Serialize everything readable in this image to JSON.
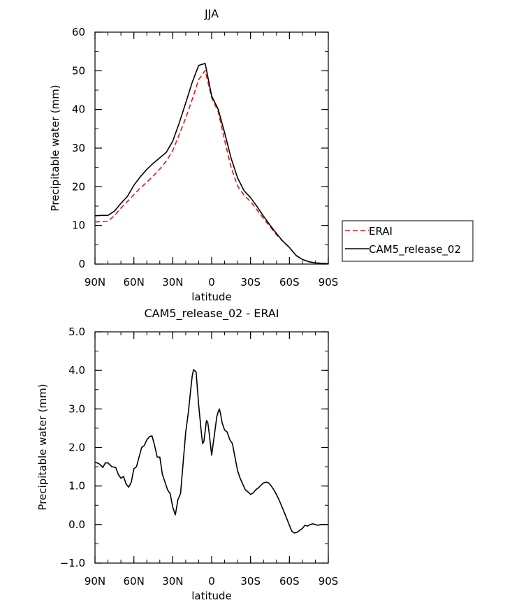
{
  "chart_data": [
    {
      "type": "line",
      "title": "JJA",
      "xlabel": "latitude",
      "ylabel": "Precipitable water (mm)",
      "xlim": [
        90,
        -90
      ],
      "ylim": [
        0,
        60
      ],
      "x_tick_values": [
        90,
        60,
        30,
        0,
        -30,
        -60,
        -90
      ],
      "x_tick_labels": [
        "90N",
        "60N",
        "30N",
        "0",
        "30S",
        "60S",
        "90S"
      ],
      "y_ticks": [
        0,
        10,
        20,
        30,
        40,
        50,
        60
      ],
      "y_tick_labels": [
        "0",
        "10",
        "20",
        "30",
        "40",
        "50",
        "60"
      ],
      "legend_position": "right",
      "grid": false,
      "series": [
        {
          "name": "ERAI",
          "color": "#e0191b",
          "dash": "dashed",
          "x": [
            90,
            85,
            80,
            75,
            70,
            65,
            60,
            55,
            50,
            45,
            40,
            35,
            30,
            25,
            20,
            15,
            10,
            5,
            0,
            -5,
            -10,
            -15,
            -20,
            -25,
            -30,
            -35,
            -40,
            -45,
            -50,
            -55,
            -60,
            -65,
            -70,
            -75,
            -80,
            -85,
            -90
          ],
          "y": [
            10.9,
            11.0,
            11.1,
            12.5,
            14.5,
            16.2,
            18.0,
            19.7,
            21.2,
            22.8,
            24.6,
            26.6,
            29.4,
            33.5,
            37.8,
            42.6,
            47.7,
            50.1,
            43.0,
            39.5,
            32.0,
            25.0,
            20.2,
            17.8,
            16.2,
            14.0,
            11.8,
            9.7,
            7.6,
            5.9,
            4.3,
            2.2,
            1.2,
            0.6,
            0.3,
            0.2,
            0.1
          ]
        },
        {
          "name": "CAM5_release_02",
          "color": "#000000",
          "dash": "solid",
          "x": [
            90,
            85,
            80,
            75,
            70,
            65,
            60,
            55,
            50,
            45,
            40,
            35,
            30,
            25,
            20,
            15,
            10,
            5,
            0,
            -5,
            -10,
            -15,
            -20,
            -25,
            -30,
            -35,
            -40,
            -45,
            -50,
            -55,
            -60,
            -65,
            -70,
            -75,
            -80,
            -85,
            -90
          ],
          "y": [
            12.5,
            12.6,
            12.6,
            13.7,
            15.7,
            17.5,
            20.4,
            22.6,
            24.5,
            26.1,
            27.5,
            28.9,
            31.8,
            36.5,
            41.7,
            47.0,
            51.4,
            51.9,
            43.5,
            40.1,
            34.0,
            27.4,
            22.3,
            19.0,
            17.2,
            14.9,
            12.4,
            10.1,
            7.9,
            5.9,
            4.3,
            2.3,
            1.2,
            0.6,
            0.3,
            0.2,
            0.1
          ]
        }
      ]
    },
    {
      "type": "line",
      "title": "CAM5_release_02 - ERAI",
      "xlabel": "latitude",
      "ylabel": "Precipitable water (mm)",
      "xlim": [
        90,
        -90
      ],
      "ylim": [
        -1.0,
        5.0
      ],
      "x_tick_values": [
        90,
        60,
        30,
        0,
        -30,
        -60,
        -90
      ],
      "x_tick_labels": [
        "90N",
        "60N",
        "30N",
        "0",
        "30S",
        "60S",
        "90S"
      ],
      "y_ticks": [
        -1.0,
        0.0,
        1.0,
        2.0,
        3.0,
        4.0,
        5.0
      ],
      "y_tick_labels": [
        "−1.0",
        "0.0",
        "1.0",
        "2.0",
        "3.0",
        "4.0",
        "5.0"
      ],
      "grid": false,
      "series": [
        {
          "color": "#000000",
          "dash": "solid",
          "x": [
            90,
            87,
            85,
            84,
            82,
            80,
            77,
            74,
            72,
            70,
            68,
            66,
            64,
            62,
            60,
            58,
            56,
            54,
            52,
            50,
            48,
            46,
            44,
            42,
            40,
            38,
            36,
            34,
            32,
            30,
            28,
            26,
            24,
            22,
            20,
            18,
            16,
            15,
            14,
            12,
            10,
            9,
            8,
            7,
            6,
            4,
            3,
            2,
            1,
            0,
            -2,
            -4,
            -5,
            -6,
            -7,
            -8,
            -10,
            -12,
            -14,
            -16,
            -18,
            -20,
            -22,
            -24,
            -26,
            -28,
            -30,
            -32,
            -34,
            -36,
            -38,
            -40,
            -42,
            -44,
            -46,
            -48,
            -50,
            -52,
            -54,
            -56,
            -58,
            -60,
            -62,
            -64,
            -66,
            -68,
            -70,
            -72,
            -74,
            -76,
            -78,
            -80,
            -82,
            -84,
            -86,
            -88,
            -90
          ],
          "y": [
            1.62,
            1.58,
            1.52,
            1.48,
            1.6,
            1.6,
            1.5,
            1.48,
            1.3,
            1.2,
            1.25,
            1.05,
            0.97,
            1.1,
            1.45,
            1.5,
            1.75,
            2.0,
            2.05,
            2.2,
            2.28,
            2.3,
            2.05,
            1.75,
            1.75,
            1.3,
            1.1,
            0.9,
            0.8,
            0.45,
            0.25,
            0.65,
            0.8,
            1.6,
            2.4,
            2.9,
            3.55,
            3.85,
            4.02,
            3.96,
            3.1,
            2.75,
            2.4,
            2.1,
            2.15,
            2.7,
            2.65,
            2.4,
            2.1,
            1.8,
            2.3,
            2.8,
            2.92,
            3.0,
            2.85,
            2.65,
            2.45,
            2.4,
            2.2,
            2.1,
            1.75,
            1.4,
            1.2,
            1.05,
            0.9,
            0.85,
            0.78,
            0.82,
            0.9,
            0.95,
            1.02,
            1.08,
            1.1,
            1.08,
            1.0,
            0.9,
            0.78,
            0.64,
            0.48,
            0.32,
            0.15,
            -0.02,
            -0.18,
            -0.22,
            -0.2,
            -0.15,
            -0.1,
            -0.02,
            -0.04,
            0.0,
            0.02,
            0.0,
            -0.02,
            0.0,
            0.0,
            0.0,
            0.0
          ]
        }
      ]
    }
  ]
}
